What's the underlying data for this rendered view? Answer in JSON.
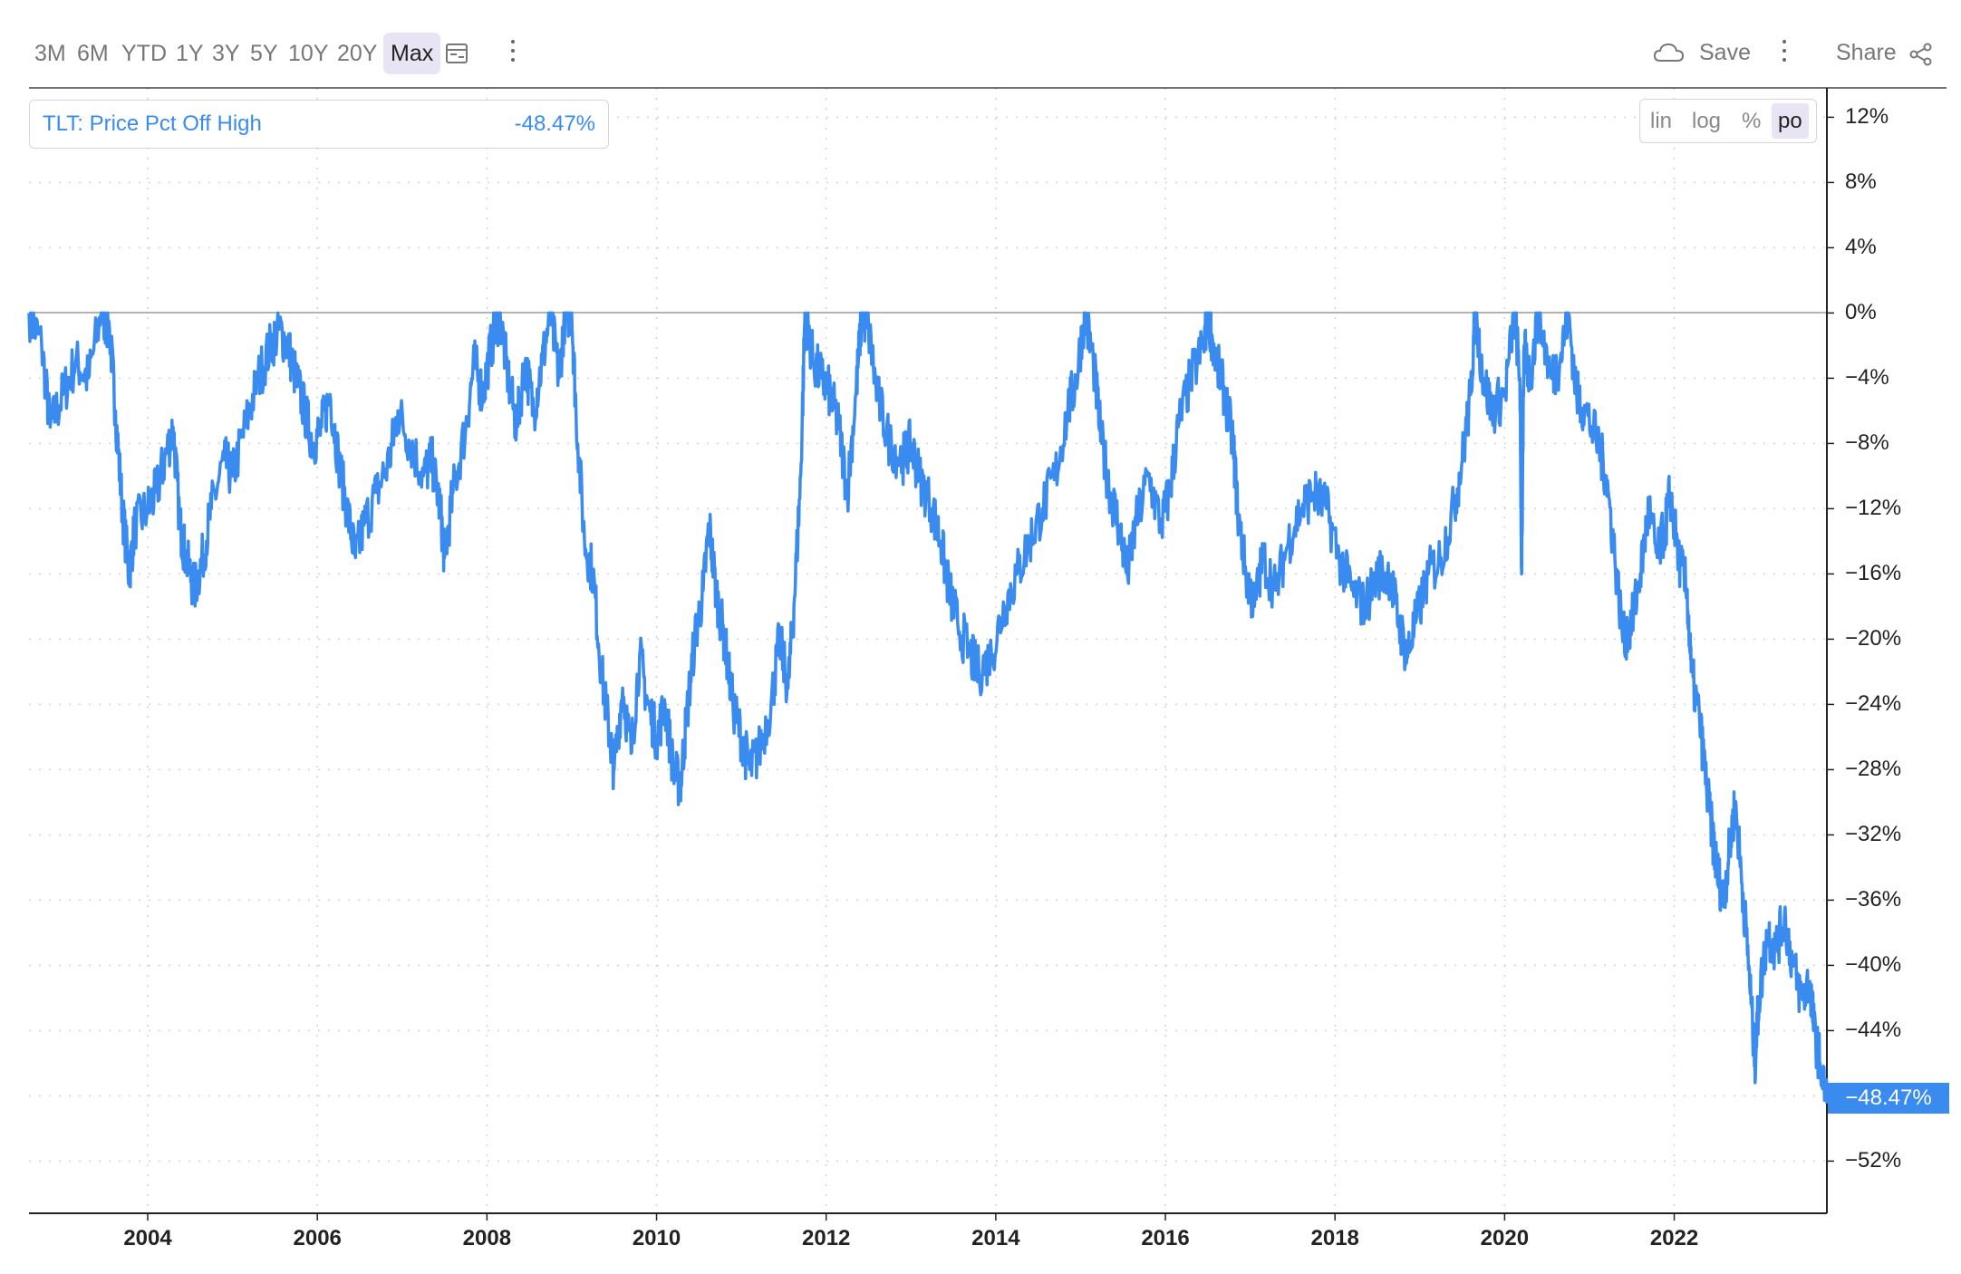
{
  "toolbar": {
    "ranges": [
      {
        "label": "3M",
        "active": false
      },
      {
        "label": "6M",
        "active": false
      },
      {
        "label": "YTD",
        "active": false
      },
      {
        "label": "1Y",
        "active": false
      },
      {
        "label": "3Y",
        "active": false
      },
      {
        "label": "5Y",
        "active": false
      },
      {
        "label": "10Y",
        "active": false
      },
      {
        "label": "20Y",
        "active": false
      },
      {
        "label": "Max",
        "active": true
      }
    ],
    "calendar_icon": "calendar-icon",
    "save_label": "Save",
    "share_label": "Share"
  },
  "legend": {
    "label": "TLT: Price Pct Off High",
    "value": "-48.47%"
  },
  "scale_options": [
    {
      "label": "lin",
      "active": false
    },
    {
      "label": "log",
      "active": false
    },
    {
      "label": "%",
      "active": false
    },
    {
      "label": "po",
      "active": true
    }
  ],
  "chart_data": {
    "type": "line",
    "xlim": [
      2002.6,
      2023.8
    ],
    "ylim": [
      -55.2,
      13.8
    ],
    "x_ticks": [
      "2004",
      "2006",
      "2008",
      "2010",
      "2012",
      "2014",
      "2016",
      "2018",
      "2020",
      "2022"
    ],
    "y_ticks": [
      "12%",
      "8%",
      "4%",
      "0%",
      "−4%",
      "−8%",
      "−12%",
      "−16%",
      "−20%",
      "−24%",
      "−28%",
      "−32%",
      "−36%",
      "−40%",
      "−44%",
      "−48%",
      "−52%"
    ],
    "reference_line": 0,
    "series": [
      {
        "color": "#3a8bf0",
        "last_value_label": "−48.47%",
        "points": [
          [
            2002.6,
            0
          ],
          [
            2002.75,
            -2
          ],
          [
            2002.85,
            -7
          ],
          [
            2003.0,
            -5
          ],
          [
            2003.15,
            -3
          ],
          [
            2003.3,
            -4
          ],
          [
            2003.45,
            0
          ],
          [
            2003.55,
            -1
          ],
          [
            2003.62,
            -6
          ],
          [
            2003.7,
            -12
          ],
          [
            2003.78,
            -16
          ],
          [
            2003.85,
            -13
          ],
          [
            2004.0,
            -12
          ],
          [
            2004.1,
            -11
          ],
          [
            2004.2,
            -9
          ],
          [
            2004.3,
            -7
          ],
          [
            2004.38,
            -13
          ],
          [
            2004.45,
            -15
          ],
          [
            2004.55,
            -17
          ],
          [
            2004.65,
            -15
          ],
          [
            2004.75,
            -12
          ],
          [
            2004.9,
            -9
          ],
          [
            2005.0,
            -10
          ],
          [
            2005.15,
            -7
          ],
          [
            2005.3,
            -4
          ],
          [
            2005.45,
            -2
          ],
          [
            2005.55,
            -1
          ],
          [
            2005.65,
            -2
          ],
          [
            2005.75,
            -4
          ],
          [
            2005.85,
            -6
          ],
          [
            2005.95,
            -8
          ],
          [
            2006.05,
            -7
          ],
          [
            2006.15,
            -5
          ],
          [
            2006.25,
            -9
          ],
          [
            2006.35,
            -12
          ],
          [
            2006.45,
            -15
          ],
          [
            2006.55,
            -13
          ],
          [
            2006.7,
            -11
          ],
          [
            2006.85,
            -9
          ],
          [
            2006.95,
            -6
          ],
          [
            2007.1,
            -8
          ],
          [
            2007.25,
            -10
          ],
          [
            2007.35,
            -9
          ],
          [
            2007.45,
            -12
          ],
          [
            2007.5,
            -15
          ],
          [
            2007.6,
            -11
          ],
          [
            2007.75,
            -7
          ],
          [
            2007.85,
            -3
          ],
          [
            2007.95,
            -5
          ],
          [
            2008.05,
            -2
          ],
          [
            2008.15,
            0
          ],
          [
            2008.25,
            -4
          ],
          [
            2008.35,
            -7
          ],
          [
            2008.45,
            -3
          ],
          [
            2008.55,
            -6
          ],
          [
            2008.65,
            -3
          ],
          [
            2008.75,
            0
          ],
          [
            2008.85,
            -4
          ],
          [
            2008.92,
            0
          ],
          [
            2009.0,
            0
          ],
          [
            2009.05,
            -6
          ],
          [
            2009.15,
            -14
          ],
          [
            2009.25,
            -16
          ],
          [
            2009.35,
            -22
          ],
          [
            2009.45,
            -26
          ],
          [
            2009.5,
            -28
          ],
          [
            2009.6,
            -23
          ],
          [
            2009.7,
            -27
          ],
          [
            2009.8,
            -21
          ],
          [
            2009.9,
            -24
          ],
          [
            2010.0,
            -26
          ],
          [
            2010.1,
            -24
          ],
          [
            2010.2,
            -28
          ],
          [
            2010.28,
            -29
          ],
          [
            2010.35,
            -25
          ],
          [
            2010.45,
            -20
          ],
          [
            2010.55,
            -17
          ],
          [
            2010.62,
            -13
          ],
          [
            2010.7,
            -17
          ],
          [
            2010.8,
            -20
          ],
          [
            2010.9,
            -24
          ],
          [
            2011.0,
            -26
          ],
          [
            2011.1,
            -28
          ],
          [
            2011.2,
            -27
          ],
          [
            2011.35,
            -24
          ],
          [
            2011.45,
            -20
          ],
          [
            2011.55,
            -23
          ],
          [
            2011.62,
            -18
          ],
          [
            2011.7,
            -10
          ],
          [
            2011.75,
            0
          ],
          [
            2011.85,
            -3
          ],
          [
            2011.95,
            -4
          ],
          [
            2012.05,
            -5
          ],
          [
            2012.15,
            -7
          ],
          [
            2012.25,
            -11
          ],
          [
            2012.35,
            -5
          ],
          [
            2012.42,
            0
          ],
          [
            2012.5,
            -1
          ],
          [
            2012.6,
            -5
          ],
          [
            2012.75,
            -8
          ],
          [
            2012.9,
            -9
          ],
          [
            2013.0,
            -8
          ],
          [
            2013.1,
            -10
          ],
          [
            2013.25,
            -12
          ],
          [
            2013.35,
            -14
          ],
          [
            2013.45,
            -17
          ],
          [
            2013.55,
            -19
          ],
          [
            2013.7,
            -21
          ],
          [
            2013.8,
            -22
          ],
          [
            2013.95,
            -21
          ],
          [
            2014.1,
            -18
          ],
          [
            2014.25,
            -16
          ],
          [
            2014.4,
            -14
          ],
          [
            2014.55,
            -12
          ],
          [
            2014.7,
            -10
          ],
          [
            2014.85,
            -6
          ],
          [
            2014.95,
            -4
          ],
          [
            2015.05,
            0
          ],
          [
            2015.15,
            -3
          ],
          [
            2015.25,
            -8
          ],
          [
            2015.35,
            -11
          ],
          [
            2015.45,
            -13
          ],
          [
            2015.55,
            -16
          ],
          [
            2015.65,
            -13
          ],
          [
            2015.8,
            -10
          ],
          [
            2015.95,
            -13
          ],
          [
            2016.05,
            -11
          ],
          [
            2016.15,
            -7
          ],
          [
            2016.3,
            -4
          ],
          [
            2016.45,
            -2
          ],
          [
            2016.5,
            0
          ],
          [
            2016.6,
            -3
          ],
          [
            2016.7,
            -5
          ],
          [
            2016.8,
            -8
          ],
          [
            2016.85,
            -12
          ],
          [
            2016.95,
            -16
          ],
          [
            2017.05,
            -18
          ],
          [
            2017.15,
            -15
          ],
          [
            2017.3,
            -17
          ],
          [
            2017.45,
            -14
          ],
          [
            2017.6,
            -12
          ],
          [
            2017.75,
            -11
          ],
          [
            2017.9,
            -12
          ],
          [
            2018.05,
            -15
          ],
          [
            2018.2,
            -17
          ],
          [
            2018.35,
            -18
          ],
          [
            2018.5,
            -16
          ],
          [
            2018.65,
            -16
          ],
          [
            2018.75,
            -19
          ],
          [
            2018.85,
            -21
          ],
          [
            2018.95,
            -19
          ],
          [
            2019.1,
            -16
          ],
          [
            2019.25,
            -15
          ],
          [
            2019.4,
            -12
          ],
          [
            2019.5,
            -9
          ],
          [
            2019.6,
            -5
          ],
          [
            2019.65,
            0
          ],
          [
            2019.75,
            -4
          ],
          [
            2019.85,
            -6
          ],
          [
            2020.0,
            -5
          ],
          [
            2020.12,
            0
          ],
          [
            2020.18,
            -4
          ],
          [
            2020.2,
            -16
          ],
          [
            2020.23,
            -2
          ],
          [
            2020.3,
            -4
          ],
          [
            2020.4,
            0
          ],
          [
            2020.55,
            -4
          ],
          [
            2020.65,
            -3
          ],
          [
            2020.75,
            0
          ],
          [
            2020.85,
            -5
          ],
          [
            2020.95,
            -6
          ],
          [
            2021.1,
            -8
          ],
          [
            2021.2,
            -10
          ],
          [
            2021.3,
            -15
          ],
          [
            2021.4,
            -20
          ],
          [
            2021.5,
            -19
          ],
          [
            2021.6,
            -16
          ],
          [
            2021.7,
            -12
          ],
          [
            2021.8,
            -15
          ],
          [
            2021.9,
            -13
          ],
          [
            2021.95,
            -11
          ],
          [
            2022.05,
            -15
          ],
          [
            2022.15,
            -17
          ],
          [
            2022.2,
            -22
          ],
          [
            2022.3,
            -25
          ],
          [
            2022.38,
            -29
          ],
          [
            2022.45,
            -32
          ],
          [
            2022.5,
            -34
          ],
          [
            2022.58,
            -36
          ],
          [
            2022.65,
            -33
          ],
          [
            2022.72,
            -30
          ],
          [
            2022.8,
            -35
          ],
          [
            2022.88,
            -40
          ],
          [
            2022.95,
            -46
          ],
          [
            2023.0,
            -42
          ],
          [
            2023.1,
            -38
          ],
          [
            2023.2,
            -39
          ],
          [
            2023.3,
            -37
          ],
          [
            2023.4,
            -40
          ],
          [
            2023.5,
            -42
          ],
          [
            2023.6,
            -41
          ],
          [
            2023.65,
            -44
          ],
          [
            2023.72,
            -46
          ],
          [
            2023.8,
            -48.47
          ]
        ]
      }
    ]
  }
}
